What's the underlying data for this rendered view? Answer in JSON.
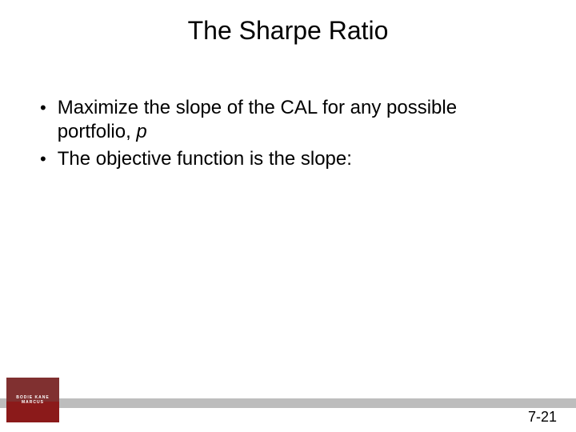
{
  "slide": {
    "title": "The Sharpe Ratio",
    "bullets": [
      {
        "prefix": "Maximize the slope of the CAL for any possible portfolio, ",
        "italic": "p",
        "suffix": ""
      },
      {
        "prefix": "The objective function is the slope:",
        "italic": "",
        "suffix": ""
      }
    ],
    "page_number": "7-21",
    "logo_text": "BODIE  KANE  MARCUS"
  },
  "style": {
    "background_color": "#ffffff",
    "title_fontsize": 32,
    "title_color": "#000000",
    "body_fontsize": 24,
    "body_color": "#000000",
    "footer_bar_color": "#bdbdbd",
    "logo_top_color": "#803030",
    "logo_bottom_color": "#8b1a1a",
    "page_number_fontsize": 18
  }
}
